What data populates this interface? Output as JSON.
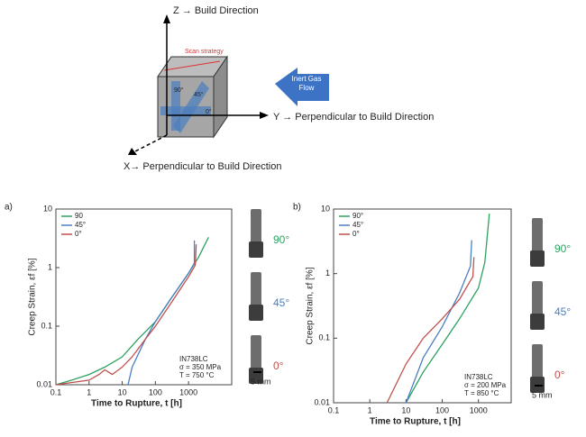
{
  "diagram": {
    "z_axis": "Z → Build Direction",
    "y_axis": "Y → Perpendicular to Build Direction",
    "x_axis": "X→ Perpendicular to Build Direction",
    "scan_label": "Scan strategy",
    "gas_label": "Inert Gas Flow",
    "angle_labels": [
      "90°",
      "45°",
      "0°"
    ]
  },
  "chart_data": [
    {
      "type": "line",
      "panel_label": "a)",
      "xlabel": "Time to Rupture, t [h]",
      "ylabel": "Creep Strain, εf [%]",
      "xscale": "log",
      "yscale": "log",
      "xlim": [
        0.1,
        20000
      ],
      "ylim": [
        0.01,
        10
      ],
      "xticks": [
        0.1,
        1,
        10,
        100,
        1000
      ],
      "yticks": [
        0.01,
        0.1,
        1,
        10
      ],
      "legend": "top left",
      "annotation": [
        "IN738LC",
        "σ = 350 MPa",
        "T = 750 °C"
      ],
      "specimen_labels": [
        "90°",
        "45°",
        "0°"
      ],
      "scale_label": "5 mm",
      "series": [
        {
          "name": "90",
          "color": "#2ca25f",
          "x": [
            0.1,
            0.3,
            1,
            3,
            10,
            30,
            100,
            300,
            1000,
            2000,
            4000
          ],
          "values": [
            0.01,
            0.012,
            0.015,
            0.02,
            0.03,
            0.06,
            0.12,
            0.3,
            0.8,
            1.5,
            3.3
          ]
        },
        {
          "name": "45°",
          "color": "#4a7fc1",
          "x": [
            15,
            20,
            50,
            100,
            300,
            1000,
            1500,
            1500
          ],
          "values": [
            0.01,
            0.02,
            0.06,
            0.12,
            0.3,
            0.8,
            1.2,
            2.9
          ]
        },
        {
          "name": "0°",
          "color": "#c0504d",
          "x": [
            0.1,
            1,
            2,
            3,
            5,
            10,
            20,
            50,
            100,
            300,
            1000,
            1600,
            1700
          ],
          "values": [
            0.01,
            0.012,
            0.015,
            0.018,
            0.015,
            0.02,
            0.03,
            0.06,
            0.1,
            0.25,
            0.7,
            1.1,
            2.5
          ]
        }
      ]
    },
    {
      "type": "line",
      "panel_label": "b)",
      "xlabel": "Time to Rupture, t [h]",
      "ylabel": "Creep Strain, εf [%]",
      "xscale": "log",
      "yscale": "log",
      "xlim": [
        0.1,
        8000
      ],
      "ylim": [
        0.01,
        10
      ],
      "xticks": [
        0.1,
        1,
        10,
        100,
        1000
      ],
      "yticks": [
        0.01,
        0.1,
        1,
        10
      ],
      "legend": "top left",
      "annotation": [
        "IN738LC",
        "σ = 200 MPa",
        "T = 850 °C"
      ],
      "specimen_labels": [
        "90°",
        "45°",
        "0°"
      ],
      "scale_label": "5 mm",
      "series": [
        {
          "name": "90°",
          "color": "#2ca25f",
          "x": [
            10,
            30,
            100,
            300,
            1000,
            1500,
            2000
          ],
          "values": [
            0.01,
            0.03,
            0.08,
            0.2,
            0.6,
            1.5,
            8.5
          ]
        },
        {
          "name": "45°",
          "color": "#4a7fc1",
          "x": [
            10,
            30,
            100,
            300,
            600,
            650
          ],
          "values": [
            0.01,
            0.05,
            0.15,
            0.5,
            1.3,
            3.3
          ]
        },
        {
          "name": "0°",
          "color": "#c0504d",
          "x": [
            3,
            10,
            30,
            100,
            300,
            700,
            750
          ],
          "values": [
            0.01,
            0.04,
            0.1,
            0.2,
            0.4,
            0.9,
            1.8
          ]
        }
      ]
    }
  ]
}
